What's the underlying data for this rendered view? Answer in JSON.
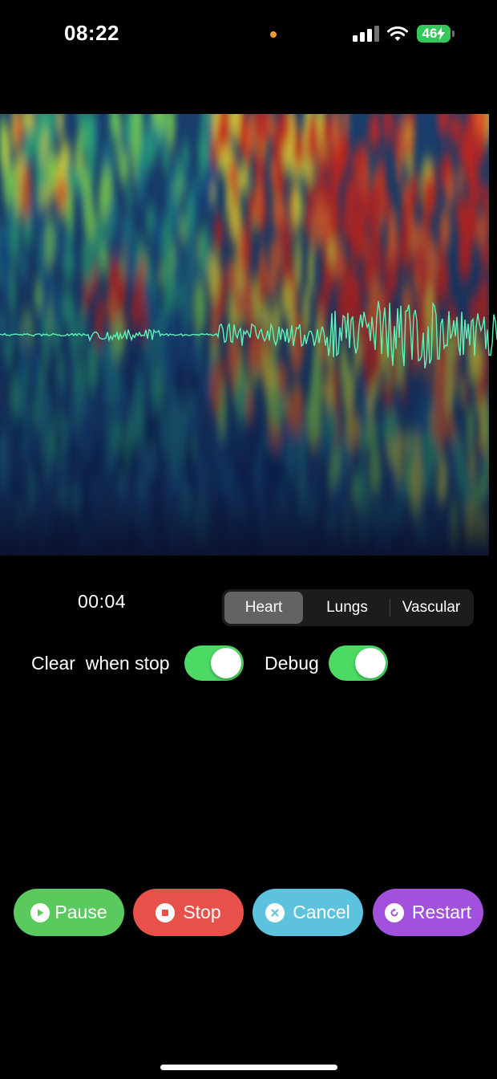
{
  "status_bar": {
    "time": "08:22",
    "battery": "46",
    "icons": [
      "privacy-dot-icon",
      "cellular-signal-icon",
      "wifi-icon",
      "battery-charging-icon"
    ]
  },
  "timer": "00:04",
  "segmented": {
    "items": [
      "Heart",
      "Lungs",
      "Vascular"
    ],
    "selected": "Heart"
  },
  "toggles": {
    "clear_when_stop": {
      "label": "Clear  when stop",
      "on": true
    },
    "debug": {
      "label": "Debug",
      "on": true
    }
  },
  "actions": {
    "pause": {
      "label": "Pause",
      "color": "#5ac95e",
      "icon": "play-icon"
    },
    "stop": {
      "label": "Stop",
      "color": "#e8504a",
      "icon": "stop-icon"
    },
    "cancel": {
      "label": "Cancel",
      "color": "#5dc2dd",
      "icon": "close-icon"
    },
    "restart": {
      "label": "Restart",
      "color": "#a251dc",
      "icon": "restart-icon"
    }
  },
  "colors": {
    "waveform": "#5ff0b8",
    "toggle_on": "#4cd964"
  }
}
